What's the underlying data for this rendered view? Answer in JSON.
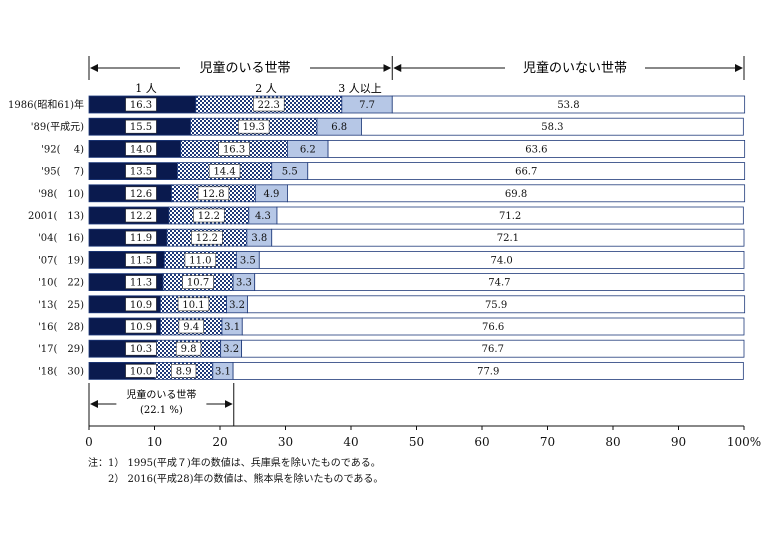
{
  "chart_data": {
    "type": "bar",
    "stacked": true,
    "orientation": "horizontal",
    "categories": [
      "1986(昭和61)年",
      "'89(平成元)",
      "'92(　 4)",
      "'95(　 7)",
      "'98(　10)",
      "2001(　13)",
      "'04(　16)",
      "'07(　19)",
      "'10(　22)",
      "'13(　25)",
      "'16(　28)",
      "'17(　29)",
      "'18(　30)"
    ],
    "series": [
      {
        "name": "1人",
        "values": [
          16.3,
          15.5,
          14.0,
          13.5,
          12.6,
          12.2,
          11.9,
          11.5,
          11.3,
          10.9,
          10.9,
          10.3,
          10.0
        ],
        "color": "#0a1a4e"
      },
      {
        "name": "2人",
        "values": [
          22.3,
          19.3,
          16.3,
          14.4,
          12.8,
          12.2,
          12.2,
          11.0,
          10.7,
          10.1,
          9.4,
          9.8,
          8.9
        ],
        "color": "#1f3a7a"
      },
      {
        "name": "3人以上",
        "values": [
          7.7,
          6.8,
          6.2,
          5.5,
          4.9,
          4.3,
          3.8,
          3.5,
          3.3,
          3.2,
          3.1,
          3.2,
          3.1
        ],
        "color": "#b6c7e6"
      },
      {
        "name": "児童のいない世帯",
        "values": [
          53.8,
          58.3,
          63.6,
          66.7,
          69.8,
          71.2,
          72.1,
          74.0,
          74.7,
          75.9,
          76.6,
          76.7,
          77.9
        ],
        "color": "#ffffff"
      }
    ],
    "value_labels": {
      "s0": [
        "16.3",
        "15.5",
        "14.0",
        "13.5",
        "12.6",
        "12.2",
        "11.9",
        "11.5",
        "11.3",
        "10.9",
        "10.9",
        "10.3",
        "10.0"
      ],
      "s1": [
        "22.3",
        "19.3",
        "16.3",
        "14.4",
        "12.8",
        "12.2",
        "12.2",
        "11.0",
        "10.7",
        "10.1",
        "9.4",
        "9.8",
        "8.9"
      ],
      "s2": [
        "7.7",
        "6.8",
        "6.2",
        "5.5",
        "4.9",
        "4.3",
        "3.8",
        "3.5",
        "3.3",
        "3.2",
        "3.1",
        "3.2",
        "3.1"
      ],
      "s3": [
        "53.8",
        "58.3",
        "63.6",
        "66.7",
        "69.8",
        "71.2",
        "72.1",
        "74.0",
        "74.7",
        "75.9",
        "76.6",
        "76.7",
        "77.9"
      ]
    },
    "xlim": [
      0,
      100
    ],
    "x_ticks": [
      0,
      10,
      20,
      30,
      40,
      50,
      60,
      70,
      80,
      90,
      100
    ],
    "x_tick_labels": [
      "0",
      "10",
      "20",
      "30",
      "40",
      "50",
      "60",
      "70",
      "80",
      "90",
      "100%"
    ],
    "header_with_children": "児童のいる世帯",
    "header_without_children": "児童のいない世帯",
    "group_label_one": "1 人",
    "group_label_two": "2 人",
    "group_label_three": "3 人以上",
    "bottom_bracket_label": "児童のいる世帯",
    "bottom_bracket_value": "(22.1 %)",
    "bottom_bracket_at": 22.1,
    "top_bracket_at": 46.3
  },
  "notes": {
    "line1": "注：1） 1995(平成７)年の数値は、兵庫県を除いたものである。",
    "line2": "　　2） 2016(平成28)年の数値は、熊本県を除いたものである。"
  }
}
